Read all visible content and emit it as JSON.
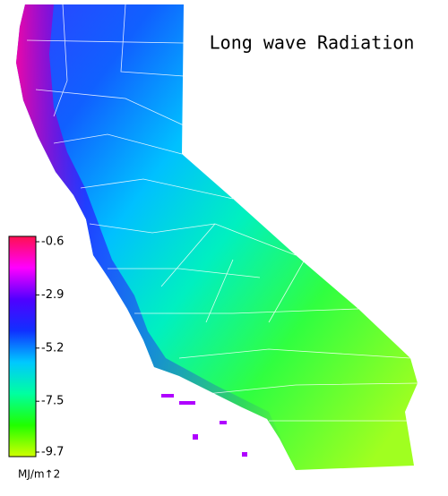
{
  "map": {
    "title": "Long wave Radiation",
    "colorbar": {
      "ticks": [
        -0.6,
        -2.9,
        -5.2,
        -7.5,
        -9.7
      ],
      "range": [
        -0.6,
        -9.7
      ],
      "unit": "MJ/m↑2",
      "colors": [
        "#ff1050",
        "#ff00ff",
        "#5000ff",
        "#1030ff",
        "#00c8ff",
        "#00ffa0",
        "#20ff00",
        "#d0ff00"
      ]
    }
  }
}
